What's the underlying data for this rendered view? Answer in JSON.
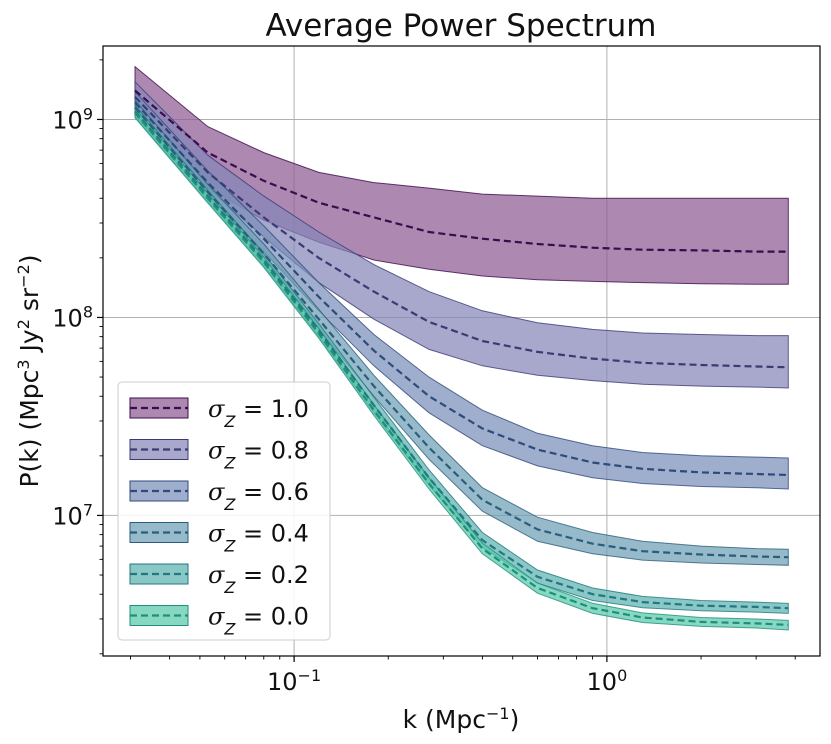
{
  "chart_data": {
    "type": "area",
    "title": "Average Power Spectrum",
    "xlabel": "k (Mpc",
    "xlabel_sup": "−1",
    "xlabel_end": ")",
    "ylabel": {
      "pre": "P(k) (Mpc",
      "sup1": "3",
      "mid": " Jy",
      "sup2": "2",
      "mid2": " sr",
      "sup3": "−2",
      "end": ")"
    },
    "x_scale": "log",
    "y_scale": "log",
    "xlim": [
      0.0245,
      4.8
    ],
    "ylim": [
      1950000.0,
      2350000000.0
    ],
    "x_ticks": [
      {
        "value": 0.1,
        "base": "10",
        "exp": "−1"
      },
      {
        "value": 1.0,
        "base": "10",
        "exp": "0"
      }
    ],
    "y_ticks": [
      {
        "value": 10000000.0,
        "base": "10",
        "exp": "7"
      },
      {
        "value": 100000000.0,
        "base": "10",
        "exp": "8"
      },
      {
        "value": 1000000000.0,
        "base": "10",
        "exp": "9"
      }
    ],
    "grid": true,
    "legend_position": "lower-left",
    "x": [
      0.031,
      0.053,
      0.08,
      0.12,
      0.18,
      0.27,
      0.4,
      0.6,
      0.9,
      1.3,
      2.0,
      3.0,
      3.8
    ],
    "series": [
      {
        "label": "σ",
        "sub": "Z",
        "value_text": " = 1.0",
        "color": "#440154",
        "fill_color": "#8e5c93",
        "line_color": "#3c0a4e",
        "mean": [
          1400000000.0,
          680000000.0,
          490000000.0,
          380000000.0,
          320000000.0,
          270000000.0,
          250000000.0,
          235000000.0,
          225000000.0,
          220000000.0,
          218000000.0,
          215000000.0,
          215000000.0
        ],
        "upper": [
          1850000000.0,
          920000000.0,
          680000000.0,
          540000000.0,
          480000000.0,
          450000000.0,
          420000000.0,
          410000000.0,
          400000000.0,
          400000000.0,
          400000000.0,
          400000000.0,
          400000000.0
        ],
        "lower": [
          1100000000.0,
          450000000.0,
          310000000.0,
          240000000.0,
          195000000.0,
          175000000.0,
          162000000.0,
          155000000.0,
          152000000.0,
          150000000.0,
          148000000.0,
          147000000.0,
          147000000.0
        ]
      },
      {
        "label": "σ",
        "sub": "Z",
        "value_text": " = 0.8",
        "color": "#414487",
        "fill_color": "#8686b8",
        "line_color": "#3b3a75",
        "mean": [
          1300000000.0,
          540000000.0,
          320000000.0,
          200000000.0,
          135000000.0,
          95000000.0,
          76000000.0,
          67000000.0,
          62000000.0,
          59000000.0,
          57500000.0,
          56500000.0,
          56000000.0
        ],
        "upper": [
          1550000000.0,
          660000000.0,
          410000000.0,
          270000000.0,
          185000000.0,
          135000000.0,
          108000000.0,
          94000000.0,
          87000000.0,
          83500000.0,
          82000000.0,
          81000000.0,
          81000000.0
        ],
        "lower": [
          1100000000.0,
          450000000.0,
          255000000.0,
          150000000.0,
          98000000.0,
          69000000.0,
          57000000.0,
          51000000.0,
          48000000.0,
          46000000.0,
          45000000.0,
          44500000.0,
          44000000.0
        ]
      },
      {
        "label": "σ",
        "sub": "Z",
        "value_text": " = 0.6",
        "color": "#2a788e",
        "fill_color": "#7a8fb8",
        "line_color": "#2f4a7c",
        "mean": [
          1220000000.0,
          480000000.0,
          250000000.0,
          127000000.0,
          68000000.0,
          40000000.0,
          27500000.0,
          21500000.0,
          18500000.0,
          17200000.0,
          16500000.0,
          16200000.0,
          16000000.0
        ],
        "upper": [
          1380000000.0,
          550000000.0,
          290000000.0,
          150000000.0,
          82000000.0,
          50000000.0,
          34000000.0,
          26000000.0,
          22500000.0,
          20800000.0,
          20000000.0,
          19700000.0,
          19500000.0
        ],
        "lower": [
          1070000000.0,
          420000000.0,
          215000000.0,
          108000000.0,
          57000000.0,
          33000000.0,
          22500000.0,
          17800000.0,
          15500000.0,
          14500000.0,
          14000000.0,
          13800000.0,
          13600000.0
        ]
      },
      {
        "label": "σ",
        "sub": "Z",
        "value_text": " = 0.4",
        "color": "#22a884",
        "fill_color": "#6d9fb6",
        "line_color": "#2a5e7d",
        "mean": [
          1150000000.0,
          430000000.0,
          210000000.0,
          98000000.0,
          45000000.0,
          22000000.0,
          12000000.0,
          8500000.0,
          7200000.0,
          6600000.0,
          6350000.0,
          6200000.0,
          6150000.0
        ],
        "upper": [
          1250000000.0,
          470000000.0,
          235000000.0,
          110000000.0,
          51000000.0,
          25500000.0,
          13800000.0,
          9800000.0,
          8200000.0,
          7400000.0,
          7000000.0,
          6800000.0,
          6750000.0
        ],
        "lower": [
          1050000000.0,
          395000000.0,
          190000000.0,
          87000000.0,
          40000000.0,
          19200000.0,
          10500000.0,
          7400000.0,
          6400000.0,
          5950000.0,
          5750000.0,
          5650000.0,
          5600000.0
        ]
      },
      {
        "label": "σ",
        "sub": "Z",
        "value_text": " = 0.2",
        "color": "#7ad151",
        "fill_color": "#5bb3b0",
        "line_color": "#23777e",
        "mean": [
          1100000000.0,
          410000000.0,
          195000000.0,
          86000000.0,
          36000000.0,
          15500000.0,
          7500000.0,
          4900000.0,
          4000000.0,
          3650000.0,
          3500000.0,
          3450000.0,
          3400000.0
        ],
        "upper": [
          1180000000.0,
          440000000.0,
          210000000.0,
          93000000.0,
          39500000.0,
          17000000.0,
          8200000.0,
          5300000.0,
          4300000.0,
          3900000.0,
          3720000.0,
          3650000.0,
          3600000.0
        ],
        "lower": [
          1030000000.0,
          385000000.0,
          182000000.0,
          80000000.0,
          33000000.0,
          14200000.0,
          6900000.0,
          4550000.0,
          3720000.0,
          3420000.0,
          3300000.0,
          3250000.0,
          3200000.0
        ]
      },
      {
        "label": "σ",
        "sub": "Z",
        "value_text": " = 0.0",
        "color": "#fde725",
        "fill_color": "#59c9ab",
        "line_color": "#1f8f7a",
        "mean": [
          1080000000.0,
          400000000.0,
          190000000.0,
          83000000.0,
          34000000.0,
          14500000.0,
          6800000.0,
          4300000.0,
          3400000.0,
          3050000.0,
          2900000.0,
          2850000.0,
          2800000.0
        ],
        "upper": [
          1140000000.0,
          425000000.0,
          202000000.0,
          88000000.0,
          36200000.0,
          15500000.0,
          7250000.0,
          4550000.0,
          3600000.0,
          3220000.0,
          3050000.0,
          3000000.0,
          2950000.0
        ],
        "lower": [
          1020000000.0,
          378000000.0,
          179000000.0,
          78500000.0,
          32000000.0,
          13600000.0,
          6400000.0,
          4050000.0,
          3200000.0,
          2880000.0,
          2750000.0,
          2700000.0,
          2640000.0
        ]
      }
    ]
  }
}
